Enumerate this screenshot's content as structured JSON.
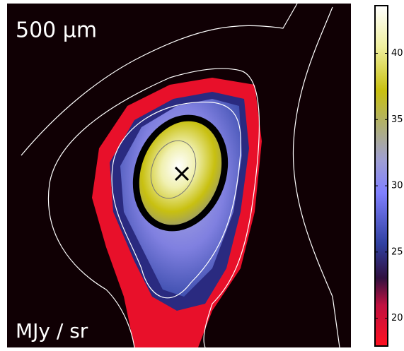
{
  "chart_data": {
    "type": "heatmap",
    "title": "500 μm",
    "colorbar_label": "MJy / sr",
    "clim": [
      17.9,
      43.6
    ],
    "cticks": [
      20,
      25,
      30,
      35,
      40
    ]
  }
}
